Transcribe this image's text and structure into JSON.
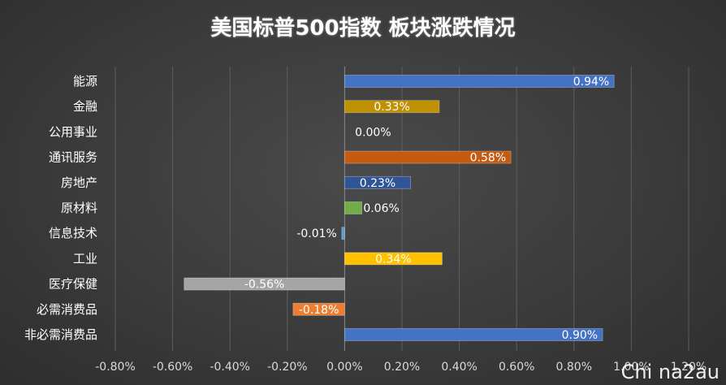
{
  "chart_data": {
    "type": "bar",
    "orientation": "horizontal",
    "title": "美国标普500指数 板块涨跌情况",
    "categories": [
      "能源",
      "金融",
      "公用事业",
      "通讯服务",
      "房地产",
      "原材料",
      "信息技术",
      "工业",
      "医疗保健",
      "必需消费品",
      "非必需消费品"
    ],
    "values": [
      0.94,
      0.33,
      0.0,
      0.58,
      0.23,
      0.06,
      -0.01,
      0.34,
      -0.56,
      -0.18,
      0.9
    ],
    "value_labels": [
      "0.94%",
      "0.33%",
      "0.00%",
      "0.58%",
      "0.23%",
      "0.06%",
      "-0.01%",
      "0.34%",
      "-0.56%",
      "-0.18%",
      "0.90%"
    ],
    "bar_colors": [
      "#4472c4",
      "#bf9000",
      "#a5a5a5",
      "#c55a11",
      "#2f5597",
      "#70ad47",
      "#5b9bd5",
      "#ffc000",
      "#a5a5a5",
      "#ed7d31",
      "#4472c4"
    ],
    "xlim": [
      -0.8,
      1.2
    ],
    "x_ticks": [
      -0.8,
      -0.6,
      -0.4,
      -0.2,
      0.0,
      0.2,
      0.4,
      0.6,
      0.8,
      1.0,
      1.2
    ],
    "x_tick_labels": [
      "-0.80%",
      "-0.60%",
      "-0.40%",
      "-0.20%",
      "0.00%",
      "0.20%",
      "0.40%",
      "0.60%",
      "0.80%",
      "1.00%",
      "1.20%"
    ],
    "grid": true,
    "legend": "none"
  },
  "watermark": "Chi na2au"
}
